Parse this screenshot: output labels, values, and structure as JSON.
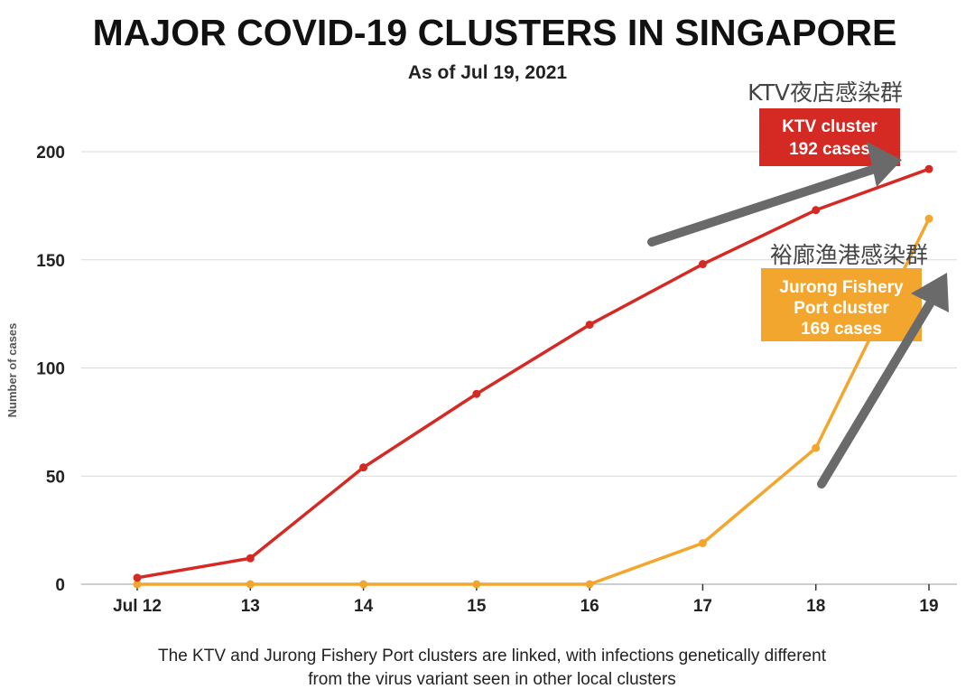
{
  "colors": {
    "ktv": "#d42a23",
    "jurong": "#f3a62d",
    "grid": "#d9d9d9",
    "arrow": "#6a6a6a"
  },
  "chart_data": {
    "type": "line",
    "title": "MAJOR COVID-19 CLUSTERS IN SINGAPORE",
    "subtitle": "As of Jul 19, 2021",
    "xlabel": "",
    "ylabel": "Number of cases",
    "categories": [
      "Jul 12",
      "13",
      "14",
      "15",
      "16",
      "17",
      "18",
      "19"
    ],
    "yticks": [
      0,
      50,
      100,
      150,
      200
    ],
    "ylim": [
      0,
      200
    ],
    "grid": true,
    "series": [
      {
        "name": "KTV cluster",
        "values": [
          3,
          12,
          54,
          88,
          120,
          148,
          173,
          192
        ]
      },
      {
        "name": "Jurong Fishery Port cluster",
        "values": [
          0,
          0,
          0,
          0,
          0,
          19,
          63,
          169
        ]
      }
    ],
    "annotations": {
      "ktv_label": {
        "line1": "KTV cluster",
        "line2": "192 cases",
        "chinese": "KTV夜店感染群"
      },
      "jurong_label": {
        "line1": "Jurong Fishery",
        "line2": "Port cluster",
        "line3": "169 cases",
        "chinese": "裕廊渔港感染群"
      }
    },
    "caption": {
      "line1": "The KTV and Jurong Fishery Port clusters are linked, with infections genetically different",
      "line2": "from the virus variant seen in other local clusters"
    }
  }
}
